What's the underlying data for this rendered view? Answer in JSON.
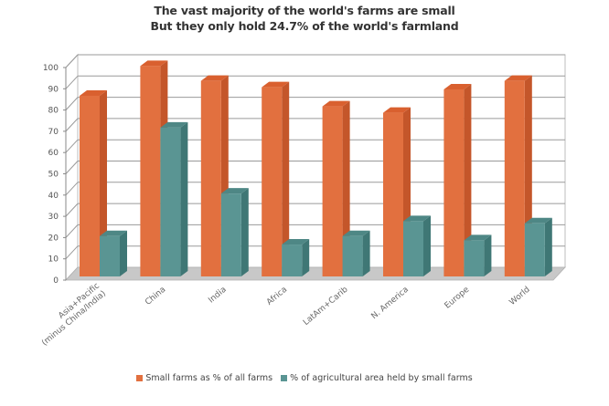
{
  "chart_data": {
    "type": "bar",
    "title": "The vast majority of the world's farms are small",
    "subtitle": "But they only hold 24.7% of the world's farmland",
    "categories": [
      "Asia+Pacific\n(minus China/India)",
      "China",
      "India",
      "Africa",
      "LatAm+Carib",
      "N. America",
      "Europe",
      "World"
    ],
    "category_lines": [
      [
        "Asia+Pacific",
        "(minus China/India)"
      ],
      [
        "China"
      ],
      [
        "India"
      ],
      [
        "Africa"
      ],
      [
        "LatAm+Carib"
      ],
      [
        "N. America"
      ],
      [
        "Europe"
      ],
      [
        "World"
      ]
    ],
    "series": [
      {
        "name": "Small farms as % of all farms",
        "color": "#E2703F",
        "side_color": "#C4562A",
        "top_color": "#D9602F",
        "values": [
          85,
          99,
          92,
          89,
          80,
          77,
          88,
          92
        ]
      },
      {
        "name": "% of agricultural area held by small farms",
        "color": "#5A9593",
        "side_color": "#3F7775",
        "top_color": "#4E8785",
        "values": [
          19,
          70,
          39,
          15,
          19,
          26,
          17,
          25
        ]
      }
    ],
    "yticks": [
      "0",
      "10",
      "20",
      "30",
      "40",
      "50",
      "60",
      "70",
      "80",
      "90",
      "100"
    ],
    "ylim": [
      0,
      100
    ],
    "xlabel": "",
    "ylabel": "",
    "grid": true,
    "legend_position": "bottom",
    "style": "3d-clustered-column"
  }
}
